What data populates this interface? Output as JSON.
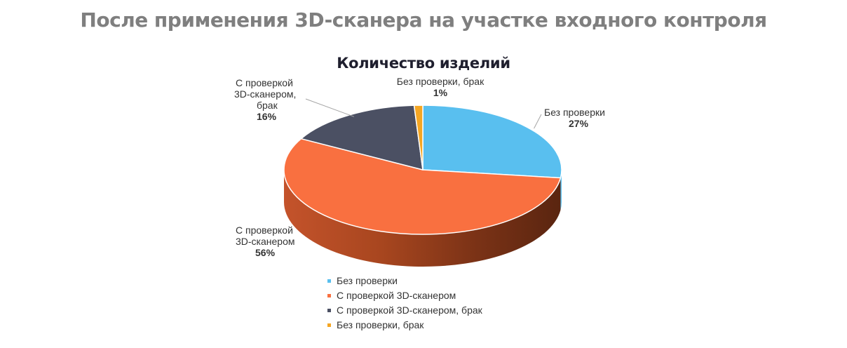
{
  "page_title": "После применения 3D-сканера на участке входного контроля",
  "chart_data": {
    "type": "pie",
    "title": "Количество изделий",
    "slices": [
      {
        "label": "Без проверки",
        "value": 27,
        "display": "27%",
        "color": "#59bfef"
      },
      {
        "label": "С проверкой 3D-сканером",
        "value": 56,
        "display": "56%",
        "color": "#f97040"
      },
      {
        "label": "С проверкой 3D-сканером, брак",
        "value": 16,
        "display": "16%",
        "color": "#4b5063"
      },
      {
        "label": "Без проверки, брак",
        "value": 1,
        "display": "1%",
        "color": "#f5a623"
      }
    ],
    "label_lines": {
      "s0": [
        "Без проверки"
      ],
      "s1": [
        "С проверкой",
        "3D-сканером"
      ],
      "s2": [
        "С проверкой",
        "3D-сканером,",
        "брак"
      ],
      "s3": [
        "Без проверки, брак"
      ]
    },
    "legend_position": "bottom",
    "style": "3d"
  }
}
